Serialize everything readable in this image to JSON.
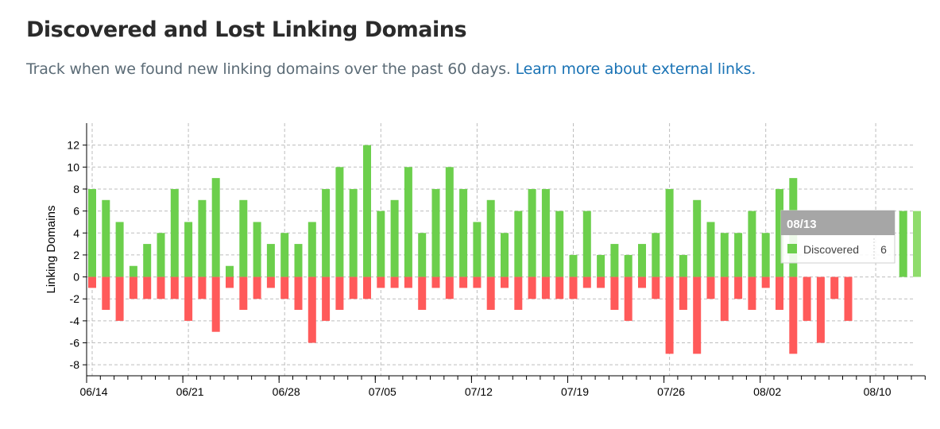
{
  "header": {
    "title": "Discovered and Lost Linking Domains",
    "subtitle_text": "Track when we found new linking domains over the past 60 days.",
    "subtitle_link": "Learn more about external links."
  },
  "colors": {
    "discovered": "#6ccf4c",
    "lost": "#ff5a5a",
    "highlight": "#8fdc6c",
    "tooltip_header": "#a6a6a6"
  },
  "chart_data": {
    "type": "bar",
    "ylabel": "Linking Domains",
    "ylim": [
      -9,
      14
    ],
    "yticks": [
      -8,
      -6,
      -4,
      -2,
      0,
      2,
      4,
      6,
      8,
      10,
      12
    ],
    "grid": true,
    "x_tick_labels": [
      "06/14",
      "06/21",
      "06/28",
      "07/05",
      "07/12",
      "07/19",
      "07/26",
      "08/02",
      "08/10"
    ],
    "categories": [
      "06/14",
      "06/15",
      "06/16",
      "06/17",
      "06/18",
      "06/19",
      "06/20",
      "06/21",
      "06/22",
      "06/23",
      "06/24",
      "06/25",
      "06/26",
      "06/27",
      "06/28",
      "06/29",
      "06/30",
      "07/01",
      "07/02",
      "07/03",
      "07/04",
      "07/05",
      "07/06",
      "07/07",
      "07/08",
      "07/09",
      "07/10",
      "07/11",
      "07/12",
      "07/13",
      "07/14",
      "07/15",
      "07/16",
      "07/17",
      "07/18",
      "07/19",
      "07/20",
      "07/21",
      "07/22",
      "07/23",
      "07/24",
      "07/25",
      "07/26",
      "07/27",
      "07/28",
      "07/29",
      "07/30",
      "07/31",
      "08/01",
      "08/02",
      "08/03",
      "08/04",
      "08/05",
      "08/06",
      "08/07",
      "08/08",
      "08/09",
      "08/10",
      "08/11",
      "08/12",
      "08/13"
    ],
    "series": [
      {
        "name": "Discovered",
        "values": [
          8,
          7,
          5,
          1,
          3,
          4,
          8,
          5,
          7,
          9,
          1,
          7,
          5,
          3,
          4,
          3,
          5,
          8,
          10,
          8,
          12,
          6,
          7,
          10,
          4,
          8,
          10,
          8,
          5,
          7,
          4,
          6,
          8,
          8,
          6,
          2,
          6,
          2,
          3,
          2,
          3,
          4,
          8,
          2,
          7,
          5,
          4,
          4,
          6,
          4,
          8,
          9,
          0,
          0,
          0,
          0,
          0,
          0,
          0,
          6,
          6
        ]
      },
      {
        "values": [
          -1,
          -3,
          -4,
          -2,
          -2,
          -2,
          -2,
          -4,
          -2,
          -5,
          -1,
          -3,
          -2,
          -1,
          -2,
          -3,
          -6,
          -4,
          -3,
          -2,
          -2,
          -1,
          -1,
          -1,
          -3,
          -1,
          -2,
          -1,
          -1,
          -3,
          -1,
          -3,
          -2,
          -2,
          -2,
          -2,
          -1,
          -1,
          -3,
          -4,
          -1,
          -2,
          -7,
          -3,
          -7,
          -2,
          -4,
          -2,
          -3,
          -1,
          -3,
          -7,
          -4,
          -6,
          -2,
          -4,
          0,
          0,
          0,
          0,
          0
        ]
      }
    ],
    "highlighted_category": "08/13",
    "tooltip": {
      "title": "08/13",
      "series": "Discovered",
      "value": "6"
    }
  }
}
